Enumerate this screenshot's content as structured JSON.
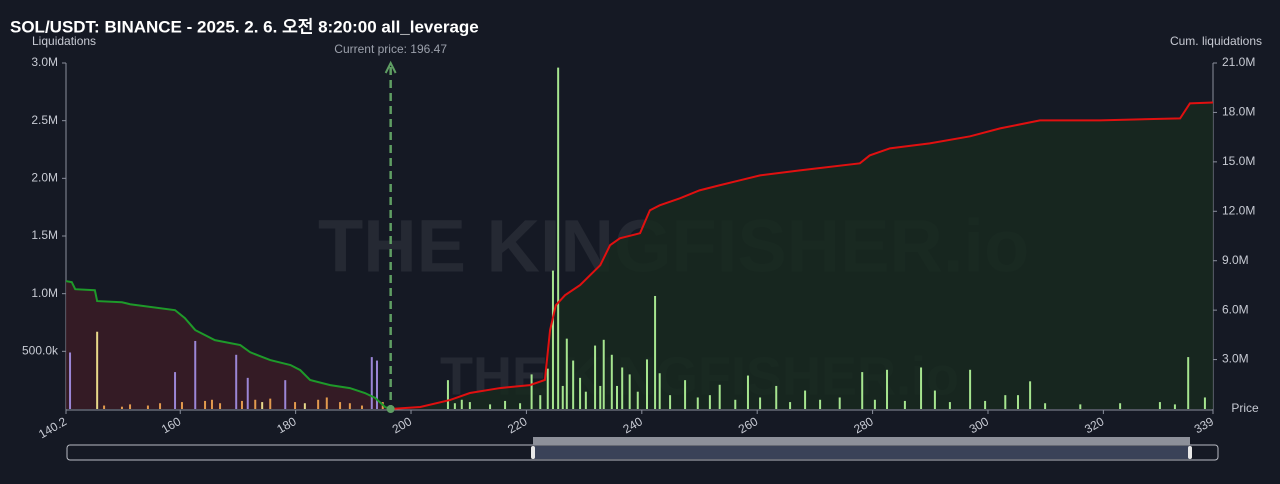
{
  "chart_data": {
    "type": "bar",
    "title": "SOL/USDT: BINANCE - 2025. 2. 6. 오전 8:20:00 all_leverage",
    "y_label": "Liquidations",
    "y2_label": "Cum. liquidations",
    "x_label": "Price",
    "watermark": "THE KINGFISHER.io",
    "current_price": {
      "value": 196.47,
      "label": "Current price: 196.47",
      "color": "#5f9e63"
    },
    "xlim": [
      140.2,
      339
    ],
    "xticks": [
      140.2,
      160,
      180,
      200,
      220,
      240,
      260,
      280,
      300,
      320,
      339
    ],
    "ylim": [
      0,
      3000000
    ],
    "yticks": [
      {
        "value": 500000,
        "label": "500.0k"
      },
      {
        "value": 1000000,
        "label": "1.0M"
      },
      {
        "value": 1500000,
        "label": "1.5M"
      },
      {
        "value": 2000000,
        "label": "2.0M"
      },
      {
        "value": 2500000,
        "label": "2.5M"
      },
      {
        "value": 3000000,
        "label": "3.0M"
      }
    ],
    "y2lim": [
      0,
      21000000
    ],
    "y2ticks": [
      {
        "value": 3000000,
        "label": "3.0M"
      },
      {
        "value": 6000000,
        "label": "6.0M"
      },
      {
        "value": 9000000,
        "label": "9.0M"
      },
      {
        "value": 12000000,
        "label": "12.0M"
      },
      {
        "value": 15000000,
        "label": "15.0M"
      },
      {
        "value": 18000000,
        "label": "18.0M"
      },
      {
        "value": 21000000,
        "label": "21.0M"
      }
    ],
    "series": [
      {
        "type": "bar",
        "color": "#9b86d6",
        "x": [
          140.9,
          159.1,
          162.6,
          169.7,
          171.7,
          178.2,
          193.2,
          194.1
        ],
        "values": [
          490000,
          320000,
          590000,
          470000,
          270000,
          250000,
          450000,
          420000
        ]
      },
      {
        "type": "bar",
        "color": "#e8d98a",
        "x": [
          145.6,
          174.2,
          181.6
        ],
        "values": [
          670000,
          60000,
          50000
        ]
      },
      {
        "type": "bar",
        "color": "#e39a4e",
        "x": [
          146.8,
          149.9,
          151.3,
          154.4,
          156.5,
          160.3,
          164.3,
          165.5,
          166.9,
          170.7,
          173.0,
          175.6,
          179.9,
          183.9,
          185.4,
          187.7,
          189.4,
          191.5,
          195.1
        ],
        "values": [
          30000,
          20000,
          40000,
          30000,
          50000,
          60000,
          70000,
          80000,
          50000,
          70000,
          80000,
          90000,
          60000,
          80000,
          100000,
          60000,
          50000,
          30000,
          60000
        ]
      },
      {
        "type": "bar",
        "color": "#a6e58f",
        "x": [
          206.4,
          207.6,
          208.8,
          210.2,
          213.7,
          216.3,
          218.9,
          220.9,
          222.4,
          223.7,
          224.6,
          225.5,
          226.3,
          227.0,
          228.1,
          229.3,
          230.3,
          231.9,
          232.8,
          233.4,
          234.8,
          235.7,
          236.6,
          237.9,
          239.3,
          240.9,
          242.3,
          243.1,
          244.9,
          247.5,
          249.7,
          251.8,
          253.5,
          256.2,
          258.4,
          260.5,
          263.3,
          265.7,
          268.3,
          270.9,
          274.3,
          278.2,
          280.4,
          282.5,
          285.6,
          288.4,
          290.8,
          293.4,
          296.9,
          299.5,
          303.0,
          305.2,
          307.3,
          309.9,
          316.0,
          322.9,
          329.8,
          332.4,
          334.7,
          337.6
        ],
        "values": [
          250000,
          50000,
          80000,
          60000,
          40000,
          70000,
          50000,
          300000,
          120000,
          350000,
          1200000,
          2960000,
          200000,
          610000,
          420000,
          270000,
          150000,
          550000,
          200000,
          600000,
          470000,
          200000,
          360000,
          300000,
          150000,
          430000,
          980000,
          310000,
          120000,
          250000,
          100000,
          120000,
          210000,
          80000,
          290000,
          100000,
          200000,
          60000,
          160000,
          80000,
          100000,
          320000,
          80000,
          340000,
          70000,
          360000,
          160000,
          60000,
          340000,
          70000,
          120000,
          120000,
          240000,
          50000,
          40000,
          50000,
          60000,
          40000,
          450000,
          100000
        ]
      },
      {
        "type": "line",
        "axis": "y2",
        "color": "#1e9a2a",
        "fill": "#3a1c26",
        "x": [
          140.2,
          141.2,
          141.8,
          145.2,
          145.6,
          149.9,
          151.3,
          159.1,
          160.8,
          162.6,
          166.0,
          170.4,
          172.1,
          173.8,
          175.6,
          179.1,
          180.8,
          182.5,
          186.0,
          189.4,
          192.0,
          193.8,
          195.5,
          196.4
        ],
        "values": [
          7760000,
          7700000,
          7270000,
          7210000,
          6550000,
          6480000,
          6360000,
          6000000,
          5520000,
          4790000,
          4180000,
          3880000,
          3450000,
          3210000,
          2970000,
          2670000,
          2360000,
          1760000,
          1450000,
          1270000,
          970000,
          670000,
          120000,
          0
        ]
      },
      {
        "type": "line",
        "axis": "y2",
        "color": "#e01010",
        "fill": "#17291f",
        "x": [
          196.4,
          201.6,
          206.8,
          210.2,
          215.4,
          220.6,
          223.2,
          224.1,
          225.1,
          226.7,
          229.3,
          232.8,
          234.5,
          236.2,
          239.7,
          241.4,
          243.1,
          246.6,
          250.0,
          253.5,
          257.0,
          260.5,
          267.4,
          277.8,
          279.5,
          283.0,
          289.9,
          296.9,
          302.1,
          309.0,
          319.4,
          333.3,
          335.0,
          339.0
        ],
        "values": [
          0,
          120000,
          550000,
          970000,
          1270000,
          1450000,
          1760000,
          4790000,
          6300000,
          6910000,
          7520000,
          8730000,
          9940000,
          10360000,
          10670000,
          12060000,
          12360000,
          12790000,
          13270000,
          13580000,
          13880000,
          14180000,
          14480000,
          14910000,
          15390000,
          15820000,
          16120000,
          16550000,
          17030000,
          17520000,
          17520000,
          17640000,
          18550000,
          18600000
        ]
      }
    ]
  }
}
